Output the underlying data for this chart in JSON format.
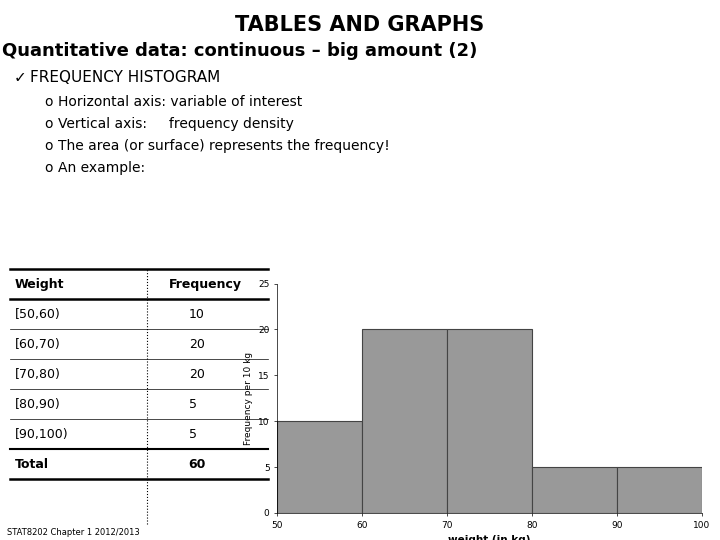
{
  "title": "TABLES AND GRAPHS",
  "subtitle": "Quantitative data: continuous – big amount (2)",
  "check_item": "FREQUENCY HISTOGRAM",
  "bullets": [
    "Horizontal axis: variable of interest",
    "Vertical axis:     frequency density",
    "The area (or surface) represents the frequency!",
    "An example:"
  ],
  "table_headers": [
    "Weight",
    "Frequency"
  ],
  "table_rows": [
    [
      "[50,60)",
      "10"
    ],
    [
      "[60,70)",
      "20"
    ],
    [
      "[70,80)",
      "20"
    ],
    [
      "[80,90)",
      "5"
    ],
    [
      "[90,100)",
      "5"
    ]
  ],
  "table_total": [
    "Total",
    "60"
  ],
  "hist_bins": [
    50,
    60,
    70,
    80,
    90,
    100
  ],
  "hist_heights": [
    10,
    20,
    20,
    5,
    5
  ],
  "hist_color": "#999999",
  "hist_edgecolor": "#444444",
  "hist_xlabel": "weight (in kg)",
  "hist_ylabel": "Frequency per 10 kg",
  "hist_ylim": [
    0,
    25
  ],
  "hist_yticks": [
    0,
    5,
    10,
    15,
    20,
    25
  ],
  "hist_xticks": [
    50,
    60,
    70,
    80,
    90,
    100
  ],
  "footer": "STAT8202 Chapter 1 2012/2013",
  "bg_color": "#ffffff",
  "title_fontsize": 15,
  "subtitle_fontsize": 13,
  "body_fontsize": 10,
  "table_fontsize": 9,
  "footer_fontsize": 6
}
